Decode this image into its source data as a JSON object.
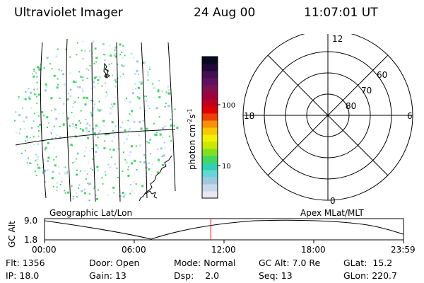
{
  "header": {
    "title": "Ultraviolet Imager",
    "date": "24 Aug 00",
    "time": "11:07:01 UT"
  },
  "colorbar": {
    "label": "photon cm",
    "label_exp1": "-2",
    "label_mid": "s",
    "label_exp2": "-1",
    "ticks": [
      "100",
      "10"
    ],
    "colors": [
      "#e8e8f0",
      "#c8d8e8",
      "#9ec8e0",
      "#60d8d8",
      "#30d0b0",
      "#40d860",
      "#80e020",
      "#c8e800",
      "#f0f000",
      "#f8c800",
      "#f89000",
      "#f04000",
      "#e00000",
      "#c00020",
      "#a00040",
      "#801050",
      "#601060",
      "#401050",
      "#200838",
      "#080820"
    ]
  },
  "polar_plot": {
    "mlt_labels": {
      "top": "12",
      "bottom": "0",
      "left": "18",
      "right": "6"
    },
    "lat_labels": [
      "60",
      "70",
      "80"
    ]
  },
  "timeline": {
    "axis_label": "GC Alt",
    "y_ticks": [
      "9.0",
      "1.8"
    ],
    "x_ticks": [
      "00:00",
      "06:00",
      "12:00",
      "18:00",
      "23:59"
    ],
    "left_caption": "Geographic Lat/Lon",
    "right_caption": "Apex MLat/MLT",
    "current_time_fraction": 0.4632,
    "marker_color": "#ff0000"
  },
  "status": {
    "flt_label": "Flt:",
    "flt_value": "1356",
    "ip_label": "IP:",
    "ip_value": "18.0",
    "door_label": "Door:",
    "door_value": "Open",
    "gain_label": "Gain:",
    "gain_value": "13",
    "mode_label": "Mode:",
    "mode_value": "Normal",
    "dsp_label": "Dsp:",
    "dsp_value": "2.0",
    "gcalt_label": "GC Alt:",
    "gcalt_value": "7.0 Re",
    "seq_label": "Seq:",
    "seq_value": "13",
    "glat_label": "GLat:",
    "glat_value": "15.2",
    "glon_label": "GLon:",
    "glon_value": "220.7"
  }
}
